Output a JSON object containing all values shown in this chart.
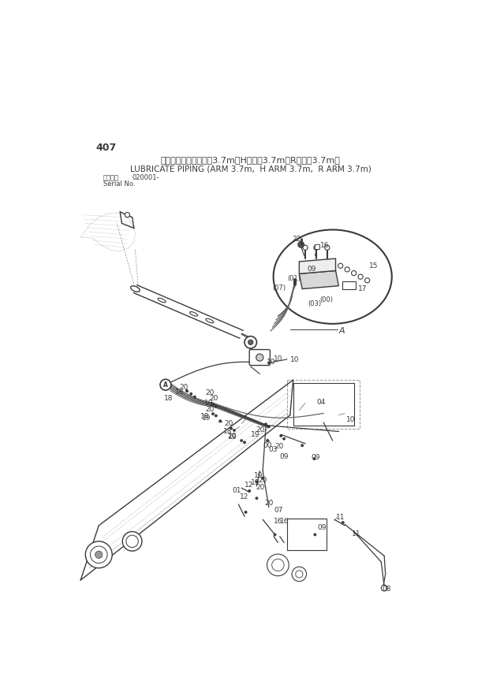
{
  "page_number": "407",
  "title_japanese": "集中給脂配管（アーム3.7m、Hアーム3.7m、Rアーム3.7m）",
  "title_english": "LUBRICATE PIPING (ARM 3.7m,  H ARM 3.7m,  R ARM 3.7m)",
  "serial_label_jp": "適用号機",
  "serial_label_en": "Serial No.",
  "serial_number": "020001-",
  "bg_color": "#ffffff",
  "dgray": "#3a3a3a",
  "lgray": "#999999",
  "mgray": "#666666"
}
